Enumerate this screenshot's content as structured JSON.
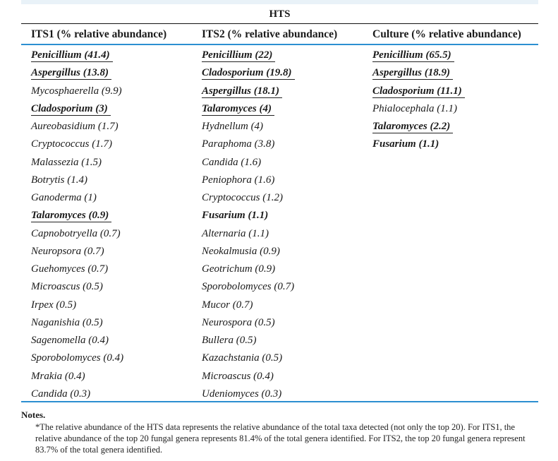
{
  "table": {
    "group_header": "HTS",
    "columns": [
      {
        "header": "ITS1 (% relative abundance)",
        "rows": [
          {
            "text": "Penicillium (41.4)",
            "highlight": true
          },
          {
            "text": "Aspergillus (13.8)",
            "highlight": true
          },
          {
            "text": "Mycosphaerella (9.9)",
            "highlight": false
          },
          {
            "text": "Cladosporium (3)",
            "highlight": true
          },
          {
            "text": "Aureobasidium (1.7)",
            "highlight": false
          },
          {
            "text": "Cryptococcus (1.7)",
            "highlight": false
          },
          {
            "text": "Malassezia (1.5)",
            "highlight": false
          },
          {
            "text": "Botrytis (1.4)",
            "highlight": false
          },
          {
            "text": "Ganoderma (1)",
            "highlight": false
          },
          {
            "text": "Talaromyces (0.9)",
            "highlight": true
          },
          {
            "text": "Capnobotryella (0.7)",
            "highlight": false
          },
          {
            "text": "Neuropsora (0.7)",
            "highlight": false
          },
          {
            "text": "Guehomyces (0.7)",
            "highlight": false
          },
          {
            "text": "Microascus (0.5)",
            "highlight": false
          },
          {
            "text": "Irpex (0.5)",
            "highlight": false
          },
          {
            "text": "Naganishia (0.5)",
            "highlight": false
          },
          {
            "text": "Sagenomella (0.4)",
            "highlight": false
          },
          {
            "text": "Sporobolomyces (0.4)",
            "highlight": false
          },
          {
            "text": "Mrakia (0.4)",
            "highlight": false
          },
          {
            "text": "Candida (0.3)",
            "highlight": false
          }
        ]
      },
      {
        "header": "ITS2 (% relative abundance)",
        "rows": [
          {
            "text": "Penicillium (22)",
            "highlight": true
          },
          {
            "text": "Cladosporium (19.8)",
            "highlight": true
          },
          {
            "text": "Aspergillus (18.1)",
            "highlight": true
          },
          {
            "text": "Talaromyces (4)",
            "highlight": true
          },
          {
            "text": "Hydnellum (4)",
            "highlight": false
          },
          {
            "text": "Paraphoma (3.8)",
            "highlight": false
          },
          {
            "text": "Candida (1.6)",
            "highlight": false
          },
          {
            "text": "Peniophora (1.6)",
            "highlight": false
          },
          {
            "text": "Cryptococcus (1.2)",
            "highlight": false
          },
          {
            "text": "Fusarium (1.1)",
            "highlight": true,
            "no_underline": true
          },
          {
            "text": "Alternaria (1.1)",
            "highlight": false
          },
          {
            "text": "Neokalmusia (0.9)",
            "highlight": false
          },
          {
            "text": "Geotrichum (0.9)",
            "highlight": false
          },
          {
            "text": "Sporobolomyces (0.7)",
            "highlight": false
          },
          {
            "text": "Mucor (0.7)",
            "highlight": false
          },
          {
            "text": "Neurospora (0.5)",
            "highlight": false
          },
          {
            "text": "Bullera (0.5)",
            "highlight": false
          },
          {
            "text": "Kazachstania (0.5)",
            "highlight": false
          },
          {
            "text": "Microascus (0.4)",
            "highlight": false
          },
          {
            "text": "Udeniomyces (0.3)",
            "highlight": false
          }
        ]
      },
      {
        "header": "Culture (% relative abundance)",
        "rows": [
          {
            "text": "Penicillium (65.5)",
            "highlight": true
          },
          {
            "text": "Aspergillus (18.9)",
            "highlight": true
          },
          {
            "text": "Cladosporium (11.1)",
            "highlight": true
          },
          {
            "text": "Phialocephala (1.1)",
            "highlight": false
          },
          {
            "text": "Talaromyces (2.2)",
            "highlight": true
          },
          {
            "text": "Fusarium (1.1)",
            "highlight": true,
            "no_underline": true
          }
        ]
      }
    ]
  },
  "notes": {
    "title": "Notes.",
    "text": "*The relative abundance of the HTS data represents the relative abundance of the total taxa detected (not only the top 20). For ITS1, the relative abundance of the top 20 fungal genera represents 81.4% of the total genera identified. For ITS2, the top 20 fungal genera represent 83.7% of the total genera identified."
  }
}
